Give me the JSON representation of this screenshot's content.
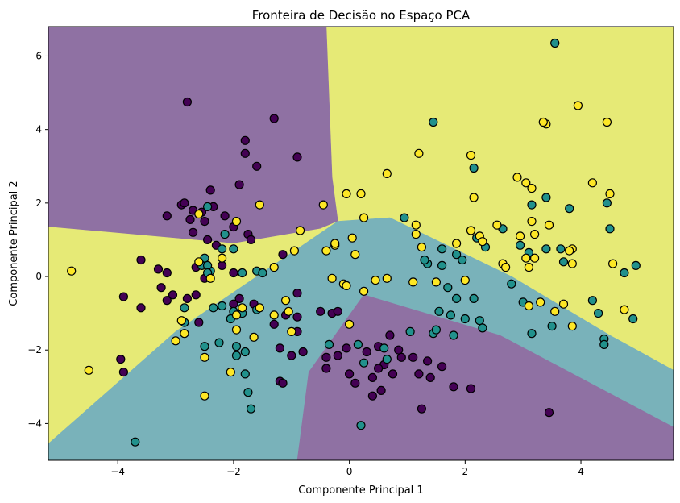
{
  "chart_data": {
    "type": "scatter",
    "title": "Fronteira de Decisão no Espaço PCA",
    "xlabel": "Componente Principal 1",
    "ylabel": "Componente Principal 2",
    "xlim": [
      -5.2,
      5.6
    ],
    "ylim": [
      -5.0,
      6.8
    ],
    "grid": false,
    "legend": "none",
    "x_ticks": [
      -4,
      -2,
      0,
      2,
      4
    ],
    "y_ticks": [
      -4,
      -2,
      0,
      2,
      4,
      6
    ],
    "class_colors": {
      "purple": "#440154",
      "teal": "#21918c",
      "yellow": "#fde725"
    },
    "region_colors": {
      "purple": "#8f71a3",
      "teal": "#79b2ba",
      "yellow": "#e6ea76"
    },
    "decision_regions": [
      {
        "class": "yellow",
        "polygon": [
          [
            -0.4,
            6.8
          ],
          [
            5.6,
            6.8
          ],
          [
            5.6,
            -2.55
          ],
          [
            4.5,
            -1.6
          ],
          [
            2.8,
            0.0
          ],
          [
            0.7,
            1.6
          ],
          [
            -0.2,
            1.5
          ],
          [
            -0.3,
            2.7
          ],
          [
            -0.4,
            6.8
          ]
        ]
      },
      {
        "class": "purple",
        "polygon": [
          [
            -5.2,
            6.8
          ],
          [
            -0.4,
            6.8
          ],
          [
            -0.3,
            2.7
          ],
          [
            -0.2,
            1.5
          ],
          [
            -0.5,
            1.3
          ],
          [
            -2.0,
            0.9
          ],
          [
            -5.2,
            1.35
          ]
        ]
      },
      {
        "class": "yellow",
        "polygon": [
          [
            -5.2,
            1.35
          ],
          [
            -2.0,
            0.9
          ],
          [
            -0.5,
            1.3
          ],
          [
            -0.2,
            1.5
          ],
          [
            -1.6,
            0.0
          ],
          [
            -3.0,
            -1.5
          ],
          [
            -5.2,
            -4.55
          ]
        ]
      },
      {
        "class": "teal",
        "polygon": [
          [
            -0.2,
            1.5
          ],
          [
            0.7,
            1.6
          ],
          [
            2.8,
            0.0
          ],
          [
            4.5,
            -1.6
          ],
          [
            5.6,
            -2.55
          ],
          [
            5.6,
            -4.1
          ],
          [
            2.6,
            -1.6
          ],
          [
            0.25,
            -0.5
          ],
          [
            -0.7,
            -2.6
          ],
          [
            -0.9,
            -5.0
          ],
          [
            -5.2,
            -5.0
          ],
          [
            -5.2,
            -4.55
          ],
          [
            -3.0,
            -1.5
          ],
          [
            -1.6,
            0.0
          ]
        ]
      },
      {
        "class": "purple",
        "polygon": [
          [
            0.25,
            -0.5
          ],
          [
            2.6,
            -1.6
          ],
          [
            5.6,
            -4.1
          ],
          [
            5.6,
            -5.0
          ],
          [
            -0.9,
            -5.0
          ],
          [
            -0.7,
            -2.6
          ]
        ]
      }
    ],
    "series": [
      {
        "class": "purple",
        "points": [
          [
            -2.8,
            4.75
          ],
          [
            -1.3,
            4.3
          ],
          [
            -1.8,
            3.7
          ],
          [
            -0.9,
            3.25
          ],
          [
            -1.8,
            3.35
          ],
          [
            -1.6,
            3.0
          ],
          [
            -1.9,
            2.5
          ],
          [
            -2.4,
            2.35
          ],
          [
            -2.9,
            1.95
          ],
          [
            -2.85,
            2.0
          ],
          [
            -2.7,
            1.8
          ],
          [
            -2.55,
            1.75
          ],
          [
            -2.35,
            1.9
          ],
          [
            -2.15,
            1.65
          ],
          [
            -3.15,
            1.65
          ],
          [
            -2.75,
            1.55
          ],
          [
            -2.5,
            1.5
          ],
          [
            -2.0,
            1.35
          ],
          [
            -2.7,
            1.2
          ],
          [
            -2.45,
            1.0
          ],
          [
            -2.3,
            0.85
          ],
          [
            -1.75,
            1.15
          ],
          [
            -1.7,
            1.0
          ],
          [
            -1.15,
            0.6
          ],
          [
            -3.6,
            0.45
          ],
          [
            -3.3,
            0.2
          ],
          [
            -3.15,
            0.1
          ],
          [
            -2.65,
            0.25
          ],
          [
            -2.5,
            -0.05
          ],
          [
            -2.2,
            0.3
          ],
          [
            -2.0,
            0.1
          ],
          [
            -3.25,
            -0.3
          ],
          [
            -3.15,
            -0.65
          ],
          [
            -3.05,
            -0.5
          ],
          [
            -2.8,
            -0.6
          ],
          [
            -2.65,
            -0.5
          ],
          [
            -3.9,
            -0.55
          ],
          [
            -3.6,
            -0.85
          ],
          [
            -2.6,
            -1.25
          ],
          [
            -2.0,
            -0.75
          ],
          [
            -1.9,
            -0.6
          ],
          [
            -1.65,
            -0.75
          ],
          [
            -0.9,
            -0.45
          ],
          [
            -1.1,
            -1.05
          ],
          [
            -1.3,
            -1.3
          ],
          [
            -0.9,
            -1.1
          ],
          [
            -1.2,
            -1.95
          ],
          [
            -1.0,
            -2.15
          ],
          [
            -0.9,
            -1.5
          ],
          [
            -0.5,
            -0.95
          ],
          [
            -0.3,
            -1.0
          ],
          [
            -0.2,
            -0.95
          ],
          [
            -0.8,
            -2.05
          ],
          [
            -0.4,
            -2.2
          ],
          [
            -0.2,
            -2.15
          ],
          [
            -0.4,
            -2.5
          ],
          [
            -0.05,
            -1.95
          ],
          [
            0.3,
            -2.05
          ],
          [
            0.5,
            -1.9
          ],
          [
            0.7,
            -1.6
          ],
          [
            0.85,
            -2.0
          ],
          [
            0.9,
            -2.2
          ],
          [
            1.1,
            -2.2
          ],
          [
            1.35,
            -2.3
          ],
          [
            0.6,
            -2.4
          ],
          [
            0.5,
            -2.5
          ],
          [
            0.75,
            -2.65
          ],
          [
            0.4,
            -2.75
          ],
          [
            0.0,
            -2.65
          ],
          [
            0.1,
            -2.9
          ],
          [
            0.55,
            -3.1
          ],
          [
            0.4,
            -3.25
          ],
          [
            1.2,
            -2.65
          ],
          [
            1.4,
            -2.75
          ],
          [
            1.6,
            -2.45
          ],
          [
            1.8,
            -3.0
          ],
          [
            1.25,
            -3.6
          ],
          [
            2.1,
            -3.05
          ],
          [
            3.45,
            -3.7
          ],
          [
            -3.95,
            -2.25
          ],
          [
            -3.9,
            -2.6
          ],
          [
            -1.2,
            -2.85
          ],
          [
            -1.15,
            -2.9
          ]
        ]
      },
      {
        "class": "teal",
        "points": [
          [
            3.55,
            6.35
          ],
          [
            1.45,
            4.2
          ],
          [
            2.15,
            2.95
          ],
          [
            3.15,
            1.95
          ],
          [
            3.4,
            2.15
          ],
          [
            3.8,
            1.85
          ],
          [
            4.45,
            2.0
          ],
          [
            4.5,
            1.3
          ],
          [
            2.65,
            1.3
          ],
          [
            3.1,
            0.65
          ],
          [
            3.4,
            0.75
          ],
          [
            3.65,
            0.75
          ],
          [
            3.7,
            0.4
          ],
          [
            2.95,
            0.85
          ],
          [
            2.2,
            1.05
          ],
          [
            2.35,
            0.8
          ],
          [
            1.95,
            0.45
          ],
          [
            1.85,
            0.6
          ],
          [
            1.6,
            0.75
          ],
          [
            1.6,
            0.3
          ],
          [
            1.35,
            0.35
          ],
          [
            0.95,
            1.6
          ],
          [
            1.3,
            0.45
          ],
          [
            1.7,
            -0.3
          ],
          [
            1.85,
            -0.6
          ],
          [
            2.15,
            -0.6
          ],
          [
            2.8,
            -0.2
          ],
          [
            3.0,
            -0.7
          ],
          [
            4.2,
            -0.65
          ],
          [
            4.3,
            -1.0
          ],
          [
            4.75,
            0.1
          ],
          [
            4.95,
            0.3
          ],
          [
            4.9,
            -1.15
          ],
          [
            3.15,
            -1.55
          ],
          [
            3.5,
            -1.35
          ],
          [
            4.4,
            -1.7
          ],
          [
            4.4,
            -1.85
          ],
          [
            1.55,
            -0.95
          ],
          [
            1.75,
            -1.05
          ],
          [
            2.0,
            -1.15
          ],
          [
            2.25,
            -1.2
          ],
          [
            2.3,
            -1.4
          ],
          [
            1.8,
            -1.6
          ],
          [
            1.45,
            -1.55
          ],
          [
            1.5,
            -1.45
          ],
          [
            1.05,
            -1.5
          ],
          [
            0.15,
            -1.85
          ],
          [
            0.6,
            -1.95
          ],
          [
            0.65,
            -2.25
          ],
          [
            0.25,
            -2.35
          ],
          [
            -0.35,
            -1.85
          ],
          [
            0.2,
            -4.05
          ],
          [
            -3.7,
            -4.5
          ],
          [
            -2.45,
            1.9
          ],
          [
            -2.2,
            0.75
          ],
          [
            -2.5,
            0.5
          ],
          [
            -2.4,
            0.15
          ],
          [
            -2.15,
            1.15
          ],
          [
            -2.0,
            0.75
          ],
          [
            -2.55,
            0.3
          ],
          [
            -2.45,
            0.3
          ],
          [
            -2.45,
            0.1
          ],
          [
            -1.85,
            0.1
          ],
          [
            -1.6,
            0.15
          ],
          [
            -1.5,
            0.1
          ],
          [
            -2.85,
            -0.85
          ],
          [
            -2.35,
            -0.85
          ],
          [
            -2.2,
            -0.8
          ],
          [
            -2.0,
            -0.95
          ],
          [
            -2.05,
            -1.15
          ],
          [
            -1.85,
            -1.0
          ],
          [
            -1.6,
            -0.9
          ],
          [
            -2.5,
            -1.9
          ],
          [
            -2.25,
            -1.8
          ],
          [
            -1.95,
            -1.9
          ],
          [
            -1.95,
            -2.15
          ],
          [
            -1.8,
            -2.05
          ],
          [
            -1.8,
            -2.65
          ],
          [
            -1.75,
            -3.15
          ],
          [
            -1.7,
            -3.6
          ],
          [
            -2.85,
            -1.25
          ]
        ]
      },
      {
        "class": "yellow",
        "points": [
          [
            3.95,
            4.65
          ],
          [
            3.4,
            4.15
          ],
          [
            3.35,
            4.2
          ],
          [
            4.45,
            4.2
          ],
          [
            2.1,
            3.3
          ],
          [
            1.2,
            3.35
          ],
          [
            0.65,
            2.8
          ],
          [
            0.2,
            2.25
          ],
          [
            -0.05,
            2.25
          ],
          [
            2.15,
            2.15
          ],
          [
            2.9,
            2.7
          ],
          [
            3.05,
            2.55
          ],
          [
            3.15,
            2.4
          ],
          [
            4.2,
            2.55
          ],
          [
            4.5,
            2.25
          ],
          [
            -0.45,
            1.95
          ],
          [
            -1.55,
            1.95
          ],
          [
            -2.6,
            1.7
          ],
          [
            -1.95,
            1.5
          ],
          [
            -0.85,
            1.25
          ],
          [
            0.25,
            1.6
          ],
          [
            1.15,
            1.4
          ],
          [
            1.15,
            1.15
          ],
          [
            2.1,
            1.25
          ],
          [
            2.25,
            1.1
          ],
          [
            2.55,
            1.4
          ],
          [
            2.95,
            1.1
          ],
          [
            3.15,
            1.5
          ],
          [
            3.2,
            1.15
          ],
          [
            3.45,
            1.4
          ],
          [
            1.25,
            0.8
          ],
          [
            1.85,
            0.9
          ],
          [
            2.3,
            0.95
          ],
          [
            3.05,
            0.5
          ],
          [
            3.2,
            0.5
          ],
          [
            3.85,
            0.75
          ],
          [
            3.8,
            0.7
          ],
          [
            3.85,
            0.35
          ],
          [
            4.55,
            0.35
          ],
          [
            2.65,
            0.35
          ],
          [
            2.7,
            0.25
          ],
          [
            3.1,
            0.25
          ],
          [
            3.3,
            -0.7
          ],
          [
            3.1,
            -0.8
          ],
          [
            3.7,
            -0.75
          ],
          [
            3.55,
            -0.95
          ],
          [
            3.85,
            -1.35
          ],
          [
            4.75,
            -0.9
          ],
          [
            -0.25,
            0.85
          ],
          [
            -0.25,
            0.9
          ],
          [
            -0.4,
            0.7
          ],
          [
            0.05,
            1.05
          ],
          [
            0.1,
            0.6
          ],
          [
            -0.95,
            0.7
          ],
          [
            -1.3,
            0.25
          ],
          [
            -0.3,
            -0.05
          ],
          [
            -0.1,
            -0.2
          ],
          [
            -0.05,
            -0.25
          ],
          [
            0.25,
            -0.4
          ],
          [
            0.45,
            -0.1
          ],
          [
            0.65,
            -0.05
          ],
          [
            1.1,
            -0.15
          ],
          [
            1.5,
            -0.15
          ],
          [
            2.0,
            -0.1
          ],
          [
            -1.1,
            -0.65
          ],
          [
            -1.05,
            -0.95
          ],
          [
            -1.3,
            -1.05
          ],
          [
            -1.55,
            -0.85
          ],
          [
            -1.85,
            -0.85
          ],
          [
            -1.95,
            -1.05
          ],
          [
            -1.95,
            -1.45
          ],
          [
            -1.65,
            -1.65
          ],
          [
            -1.0,
            -1.5
          ],
          [
            0.0,
            -1.3
          ],
          [
            -2.2,
            0.5
          ],
          [
            -2.6,
            0.4
          ],
          [
            -2.4,
            -0.05
          ],
          [
            -2.9,
            -1.2
          ],
          [
            -2.85,
            -1.55
          ],
          [
            -3.0,
            -1.75
          ],
          [
            -2.5,
            -2.2
          ],
          [
            -2.05,
            -2.6
          ],
          [
            -2.5,
            -3.25
          ],
          [
            -4.8,
            0.15
          ],
          [
            -4.5,
            -2.55
          ]
        ]
      }
    ]
  }
}
